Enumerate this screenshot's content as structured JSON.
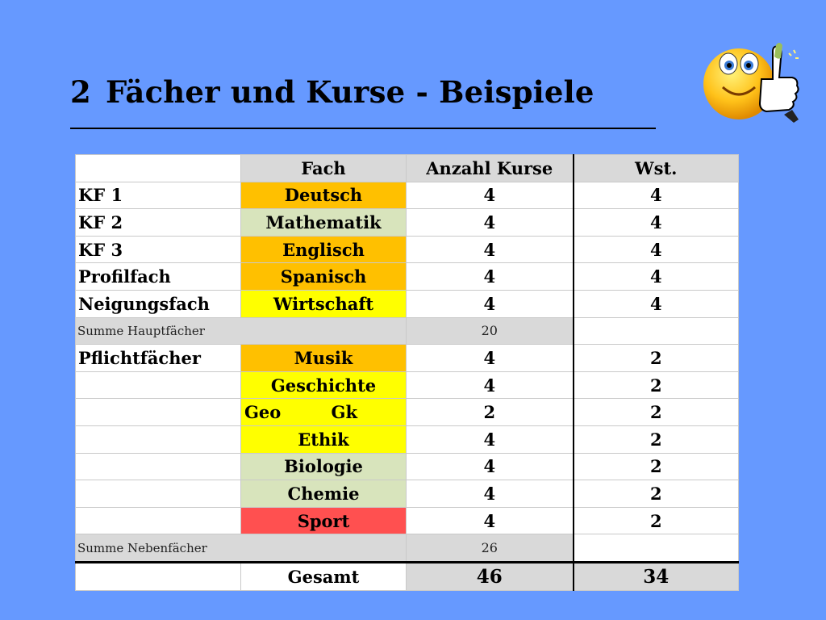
{
  "slide": {
    "title_number": "2",
    "title_text": "Fächer und Kurse - Beispiele"
  },
  "table": {
    "headers": {
      "col1": "",
      "col2": "Fach",
      "col3": "Anzahl Kurse",
      "col4": "Wst."
    },
    "rows": [
      {
        "label": "KF 1",
        "subject": "Deutsch",
        "courses": "4",
        "hours": "4",
        "color": "#ffc000"
      },
      {
        "label": "KF 2",
        "subject": "Mathematik",
        "courses": "4",
        "hours": "4",
        "color": "#d8e4bc"
      },
      {
        "label": "KF 3",
        "subject": "Englisch",
        "courses": "4",
        "hours": "4",
        "color": "#ffc000"
      },
      {
        "label": "Profilfach",
        "subject": "Spanisch",
        "courses": "4",
        "hours": "4",
        "color": "#ffc000"
      },
      {
        "label": "Neigungsfach",
        "subject": "Wirtschaft",
        "courses": "4",
        "hours": "4",
        "color": "#ffff00"
      }
    ],
    "sum_main": {
      "label": "Summe Hauptfächer",
      "value": "20"
    },
    "rows2": [
      {
        "label": "Pflichtfächer",
        "subject": "Musik",
        "courses": "4",
        "hours": "2",
        "color": "#ffc000"
      },
      {
        "label": "",
        "subject": "Geschichte",
        "courses": "4",
        "hours": "2",
        "color": "#ffff00"
      },
      {
        "label": "",
        "subject_a": "Geo",
        "subject_b": "Gk",
        "courses": "2",
        "hours": "2",
        "color": "#ffff00"
      },
      {
        "label": "",
        "subject": "Ethik",
        "courses": "4",
        "hours": "2",
        "color": "#ffff00"
      },
      {
        "label": "",
        "subject": "Biologie",
        "courses": "4",
        "hours": "2",
        "color": "#d8e4bc"
      },
      {
        "label": "",
        "subject": "Chemie",
        "courses": "4",
        "hours": "2",
        "color": "#d8e4bc"
      },
      {
        "label": "",
        "subject": "Sport",
        "courses": "4",
        "hours": "2",
        "color": "#ff5050"
      }
    ],
    "sum_minor": {
      "label": "Summe Nebenfächer",
      "value": "26"
    },
    "total": {
      "label": "Gesamt",
      "courses": "46",
      "hours": "34"
    }
  },
  "decor": {
    "icon": "thumbs-up-smiley-icon"
  }
}
